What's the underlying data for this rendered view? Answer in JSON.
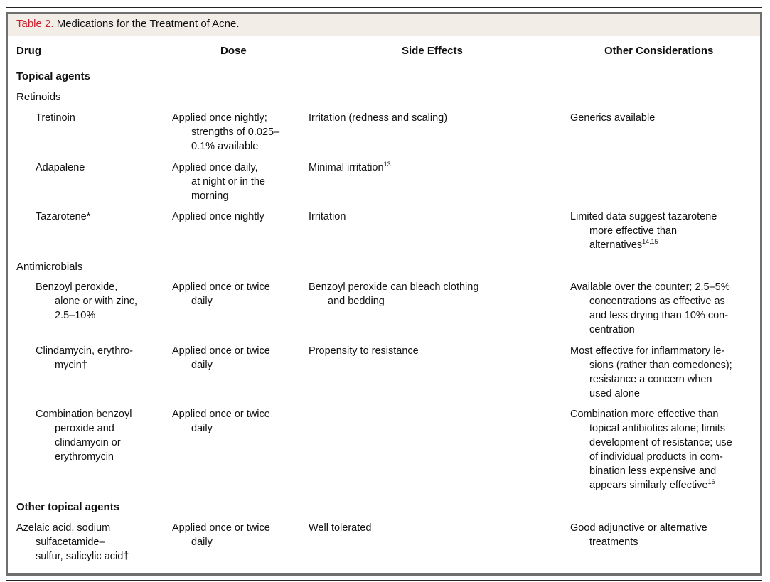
{
  "title": {
    "label": "Table 2.",
    "text": "Medications for the Treatment of Acne."
  },
  "columns": [
    "Drug",
    "Dose",
    "Side Effects",
    "Other Considerations"
  ],
  "sections": [
    {
      "label": "Topical agents",
      "bold": true
    },
    {
      "label": "Retinoids",
      "bold": false
    },
    {
      "label": "Antimicrobials",
      "bold": false
    },
    {
      "label": "Other topical agents",
      "bold": true
    }
  ],
  "rows": [
    {
      "drug": [
        "Tretinoin"
      ],
      "dose": [
        "Applied once nightly;",
        "strengths of 0.025–",
        "0.1% available"
      ],
      "side": [
        "Irritation (redness and scaling)"
      ],
      "other": [
        "Generics available"
      ]
    },
    {
      "drug": [
        "Adapalene"
      ],
      "dose": [
        "Applied once daily,",
        "at night or in the",
        "morning"
      ],
      "side": [
        "Minimal irritation"
      ],
      "side_sup": "13",
      "other": []
    },
    {
      "drug": [
        "Tazarotene*"
      ],
      "dose": [
        "Applied once nightly"
      ],
      "side": [
        "Irritation"
      ],
      "other": [
        "Limited data suggest tazarotene",
        "more effective than",
        "alternatives"
      ],
      "other_sup": "14,15"
    },
    {
      "drug": [
        "Benzoyl peroxide,",
        "alone or with zinc,",
        "2.5–10%"
      ],
      "dose": [
        "Applied once or twice",
        "daily"
      ],
      "side": [
        "Benzoyl peroxide can bleach clothing",
        "and bedding"
      ],
      "other": [
        "Available over the counter; 2.5–5%",
        "concentrations as effective as",
        "and less drying than 10% con-",
        "centration"
      ]
    },
    {
      "drug": [
        "Clindamycin, erythro-",
        "mycin†"
      ],
      "dose": [
        "Applied once or twice",
        "daily"
      ],
      "side": [
        "Propensity to resistance"
      ],
      "other": [
        "Most effective for inflammatory le-",
        "sions (rather than comedones);",
        "resistance a concern when",
        "used alone"
      ]
    },
    {
      "drug": [
        "Combination benzoyl",
        "peroxide and",
        "clindamycin or",
        "erythromycin"
      ],
      "dose": [
        "Applied once or twice",
        "daily"
      ],
      "side": [],
      "other": [
        "Combination more effective than",
        "topical antibiotics alone; limits",
        "development of resistance; use",
        "of individual products in com-",
        "bination less expensive and",
        "appears similarly effective"
      ],
      "other_sup": "16"
    },
    {
      "drug": [
        "Azelaic acid, sodium",
        "sulfacetamide–",
        "sulfur, salicylic acid†"
      ],
      "dose": [
        "Applied once or twice",
        "daily"
      ],
      "side": [
        "Well tolerated"
      ],
      "other": [
        "Good adjunctive or alternative",
        "treatments"
      ]
    }
  ],
  "colors": {
    "label": "#c8202f",
    "title_band": "#f3ede7",
    "border": "#6e6e6e"
  }
}
